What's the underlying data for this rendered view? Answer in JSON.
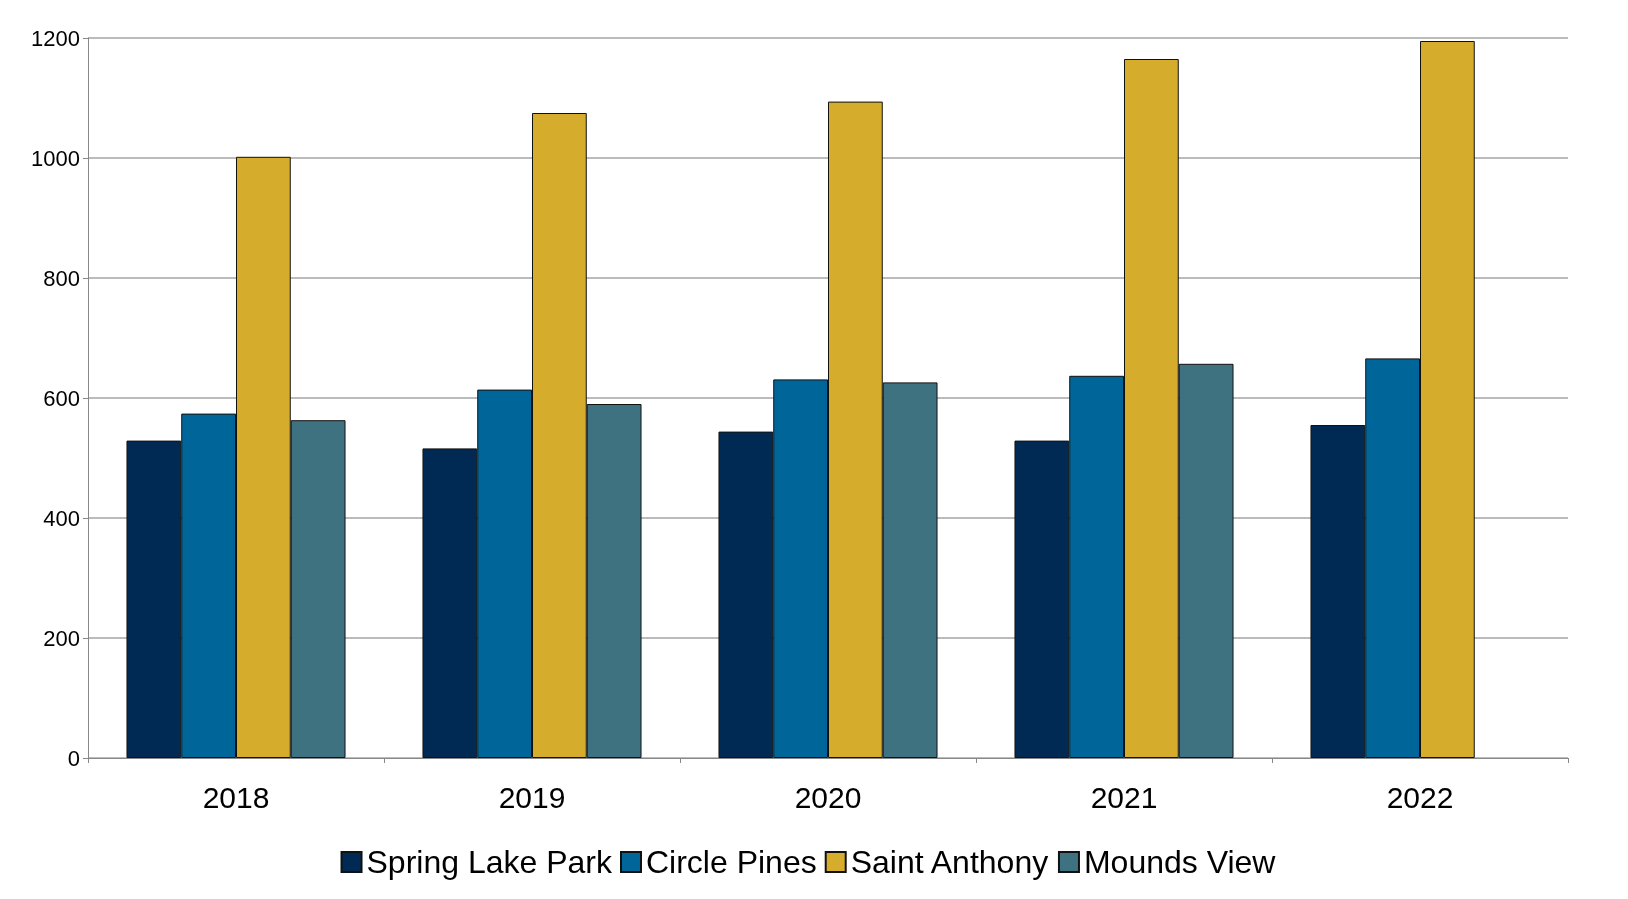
{
  "chart_data": {
    "type": "bar",
    "categories": [
      "2018",
      "2019",
      "2020",
      "2021",
      "2022"
    ],
    "series": [
      {
        "name": "Spring Lake Park",
        "color": "#002a54",
        "values": [
          529,
          516,
          544,
          529,
          555
        ]
      },
      {
        "name": "Circle Pines",
        "color": "#006699",
        "values": [
          574,
          614,
          631,
          637,
          666
        ]
      },
      {
        "name": "Saint Anthony",
        "color": "#d6ac2c",
        "values": [
          1002,
          1075,
          1094,
          1165,
          1195
        ]
      },
      {
        "name": "Mounds View",
        "color": "#3f7280",
        "values": [
          563,
          590,
          626,
          657,
          null
        ]
      }
    ],
    "ylim": [
      0,
      1200
    ],
    "yticks": [
      0,
      200,
      400,
      600,
      800,
      1000,
      1200
    ],
    "grid": "y",
    "legend": "bottom"
  }
}
